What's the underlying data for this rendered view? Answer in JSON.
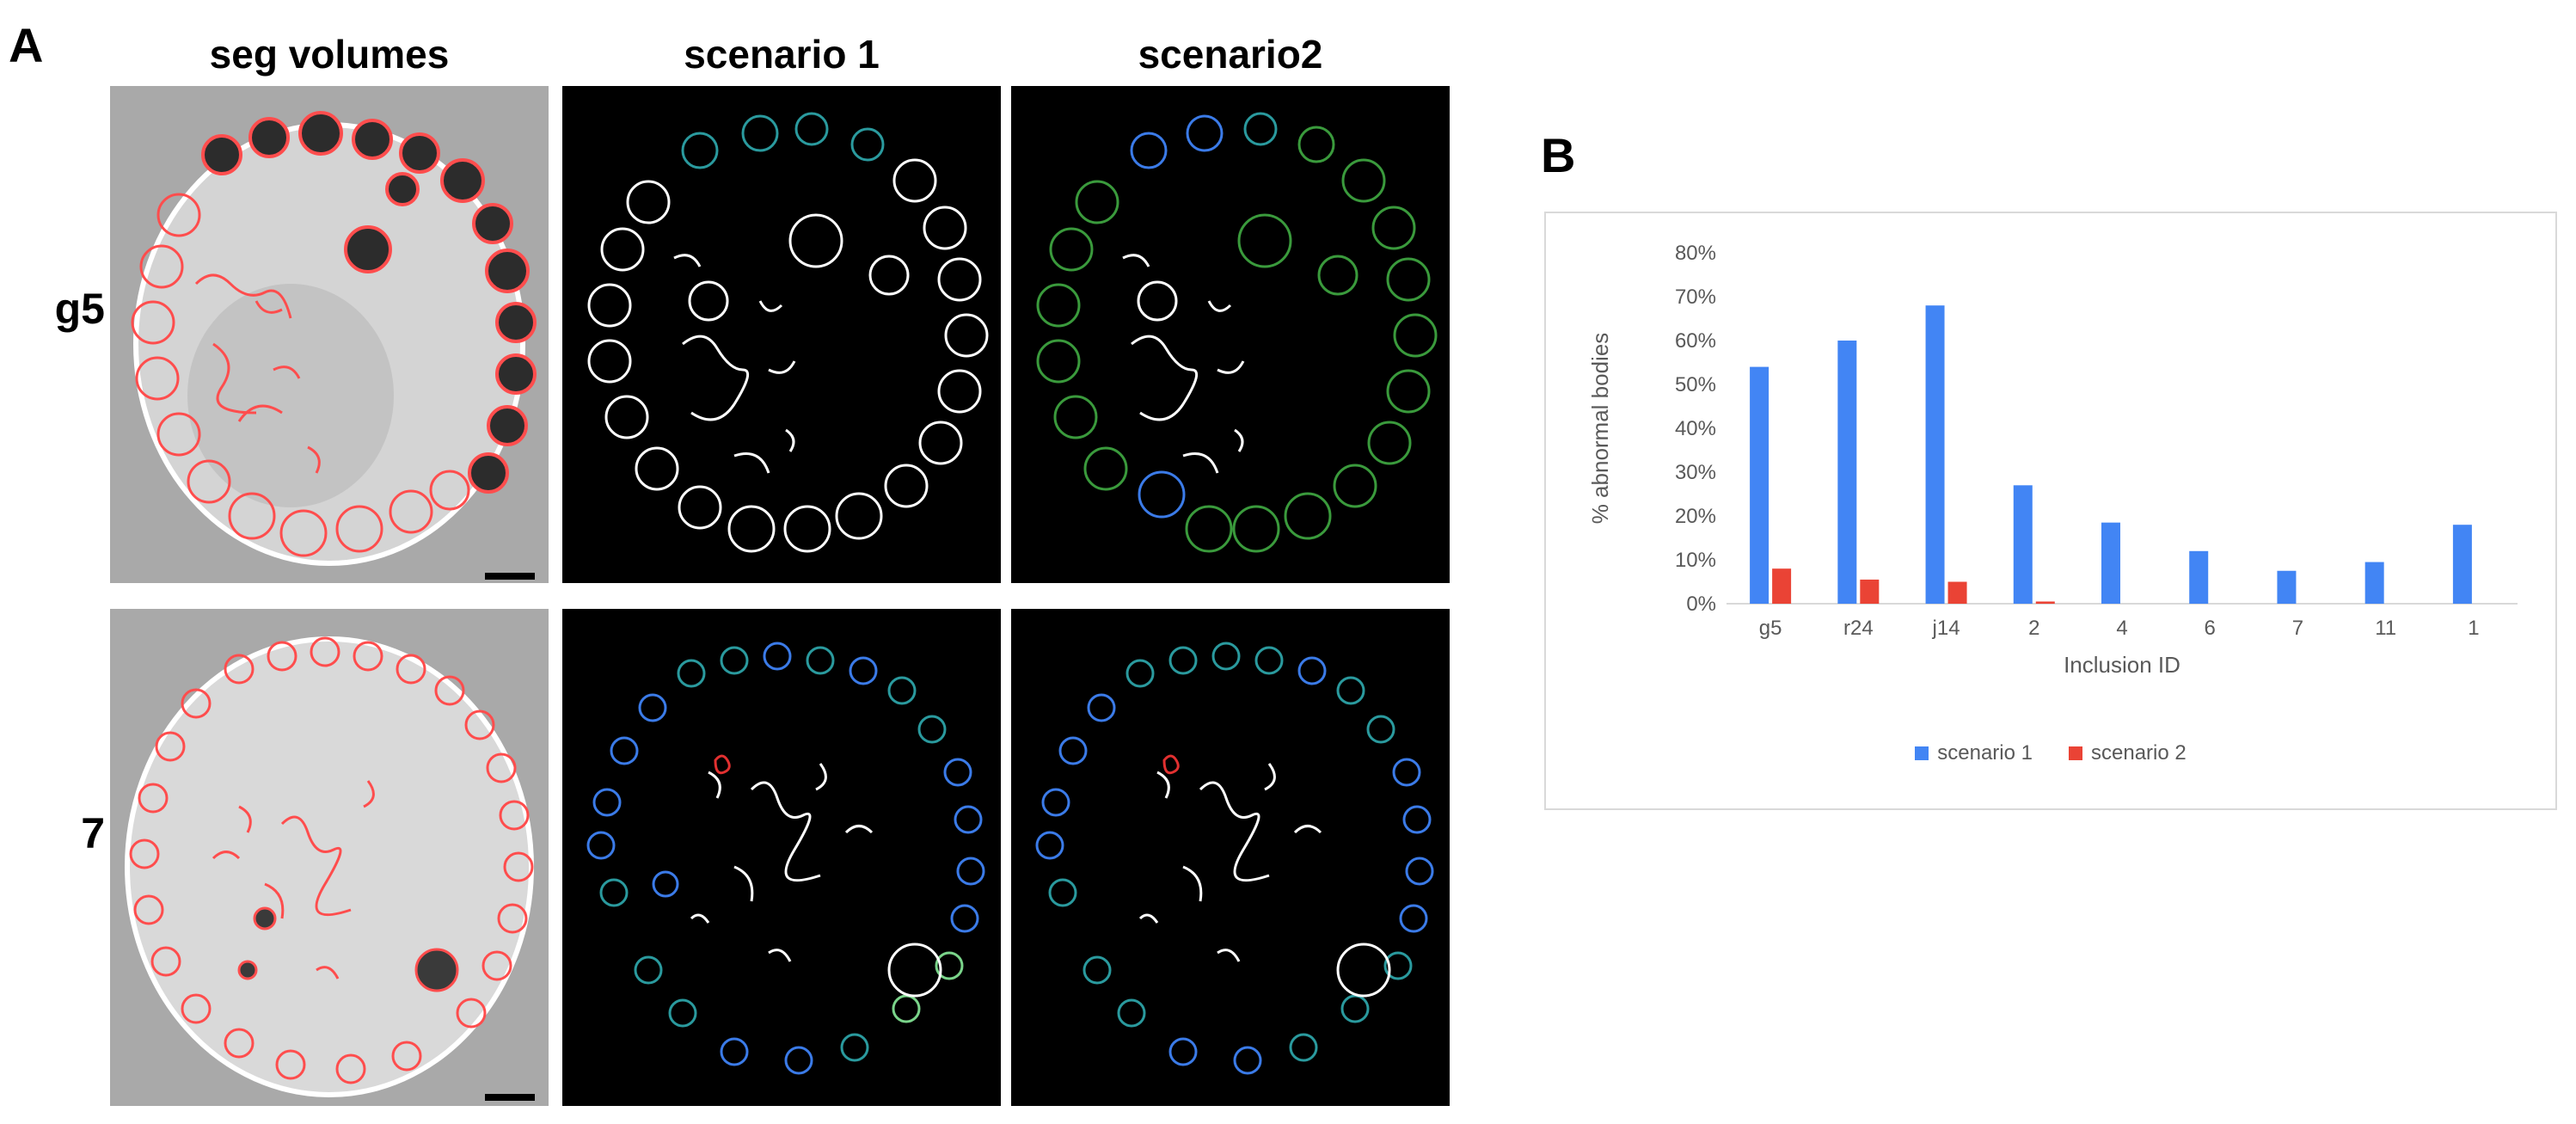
{
  "panel_labels": {
    "a": "A",
    "b": "B"
  },
  "columns": [
    "seg volumes",
    "scenario 1",
    "scenario2"
  ],
  "rows": [
    "g5",
    "7"
  ],
  "colors": {
    "em_background": "#a9a9a9",
    "em_outline": "#ff4d4d",
    "segmentation_background": "#000000",
    "white_outline": "#ffffff",
    "teal_outline": "#2a9a9e",
    "blue_outline": "#3b7be8",
    "green_outline": "#3a9a3c",
    "light_green_outline": "#7ad48a",
    "red_outline": "#e23030",
    "series_1": "#4285f4",
    "series_2": "#ea4335"
  },
  "chart_data": {
    "type": "bar",
    "categories": [
      "g5",
      "r24",
      "j14",
      "2",
      "4",
      "6",
      "7",
      "11",
      "1"
    ],
    "series": [
      {
        "name": "scenario 1",
        "values": [
          54,
          60,
          68,
          27,
          18.5,
          12,
          7.5,
          9.5,
          18
        ]
      },
      {
        "name": "scenario 2",
        "values": [
          8,
          5.5,
          5,
          0.5,
          0,
          0,
          0,
          0,
          0
        ]
      }
    ],
    "yticks": [
      "0%",
      "10%",
      "20%",
      "30%",
      "40%",
      "50%",
      "60%",
      "70%",
      "80%"
    ],
    "ylim": [
      0,
      80
    ],
    "xlabel": "Inclusion ID",
    "ylabel": "% abnormal bodies",
    "legend_position": "bottom",
    "grid": false
  }
}
